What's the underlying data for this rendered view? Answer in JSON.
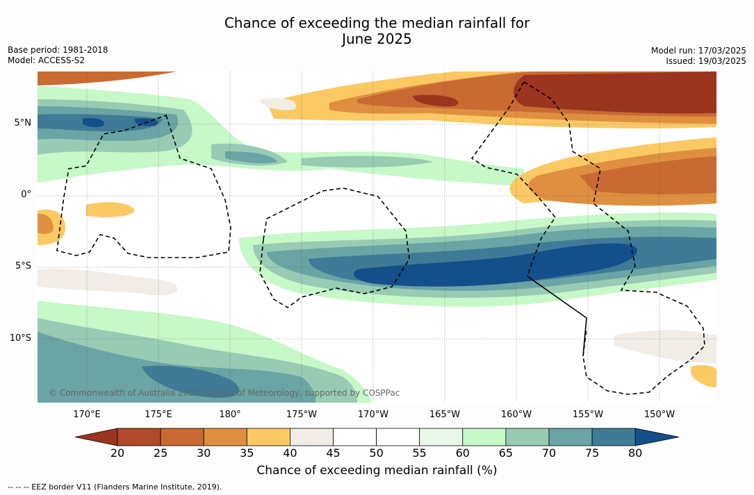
{
  "title_line1": "Chance of exceeding the median rainfall for",
  "title_line2": "June 2025",
  "base_period": "Base period: 1981-2018",
  "model": "Model: ACCESS-S2",
  "model_run": "Model run: 17/03/2025",
  "issued": "Issued: 19/03/2025",
  "copyright": "© Commonwealth of Australia 2025, Bureau of Meteorology, supported by COSPPac",
  "footnote": "--  --  -- EEZ border V11 (Flanders Marine Institute, 2019).",
  "lon_labels": [
    "170°E",
    "175°E",
    "180°",
    "175°W",
    "170°W",
    "165°W",
    "160°W",
    "155°W",
    "150°W"
  ],
  "lat_labels": [
    "5°N",
    "0°",
    "5°S",
    "10°S"
  ],
  "colorbar": {
    "label": "Chance of exceeding median rainfall (%)",
    "ticks": [
      "20",
      "25",
      "30",
      "35",
      "40",
      "45",
      "50",
      "55",
      "60",
      "65",
      "70",
      "75",
      "80"
    ],
    "colors": [
      "#9b3520",
      "#b14a28",
      "#c96a32",
      "#de9040",
      "#fbc964",
      "#f1ece6",
      "#ffffff",
      "#ffffff",
      "#ebf6ea",
      "#c6f8c8",
      "#98cbb4",
      "#6aa4a4",
      "#3f7b96",
      "#124f8b"
    ]
  }
}
